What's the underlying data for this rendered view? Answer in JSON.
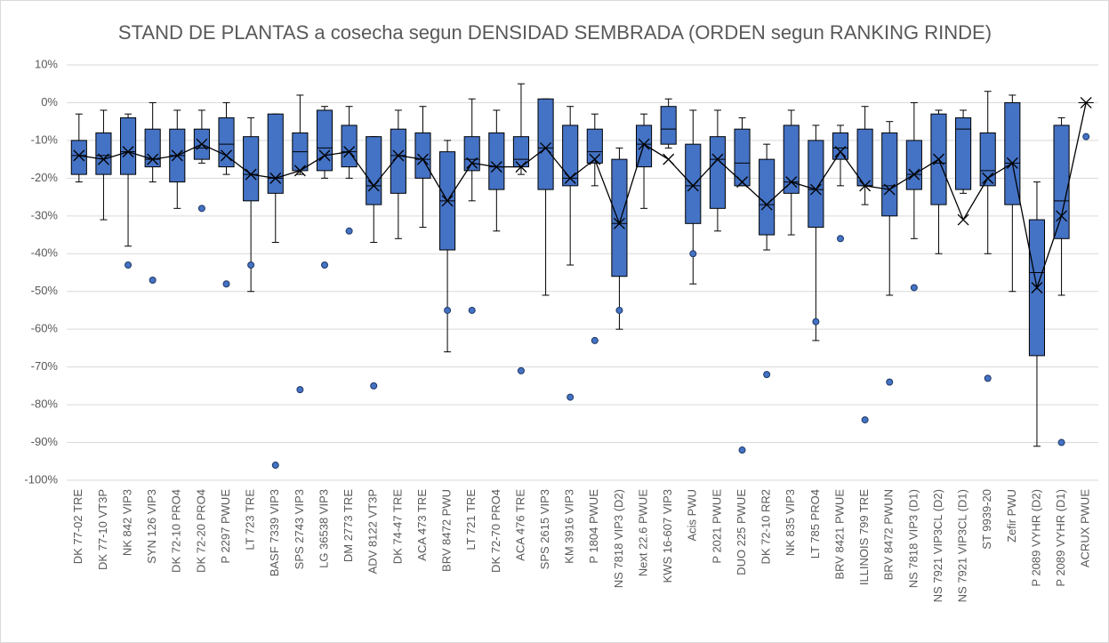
{
  "chart_data": {
    "type": "box",
    "title": "STAND DE PLANTAS a cosecha segun DENSIDAD SEMBRADA (ORDEN segun RANKING RINDE)",
    "categories": [
      "DK 77-02 TRE",
      "DK 77-10 VT3P",
      "NK 842 VIP3",
      "SYN 126 VIP3",
      "DK 72-10 PRO4",
      "DK 72-20 PRO4",
      "P 2297 PWUE",
      "LT 723 TRE",
      "BASF 7339 VIP3",
      "SPS 2743 VIP3",
      "LG 36538 VIP3",
      "DM 2773 TRE",
      "ADV 8122 VT3P",
      "DK 74-47 TRE",
      "ACA 473 TRE",
      "BRV 8472 PWU",
      "LT 721 TRE",
      "DK 72-70 PRO4",
      "ACA 476 TRE",
      "SPS 2615 VIP3",
      "KM 3916 VIP3",
      "P 1804 PWUE",
      "NS 7818 VIP3 (D2)",
      "Next 22.6 PWUE",
      "KWS 16-607 VIP3",
      "Acis PWU",
      "P 2021 PWUE",
      "DUO 225 PWUE",
      "DK 72-10 RR2",
      "NK 835 VIP3",
      "LT 785 PRO4",
      "BRV 8421 PWUE",
      "ILLINOIS 799 TRE",
      "BRV 8472 PWUN",
      "NS 7818 VIP3 (D1)",
      "NS 7921 VIP3CL (D2)",
      "NS 7921 VIP3CL (D1)",
      "ST 9939-20",
      "Zefir PWU",
      "P 2089 VYHR (D2)",
      "P 2089 VYHR (D1)",
      "ACRUX PWUE"
    ],
    "boxes": [
      {
        "low": -21,
        "q1": -19,
        "median": -14,
        "q3": -10,
        "high": -3,
        "mean": -14,
        "outliers": []
      },
      {
        "low": -31,
        "q1": -19,
        "median": -14,
        "q3": -8,
        "high": -2,
        "mean": -15,
        "outliers": []
      },
      {
        "low": -38,
        "q1": -19,
        "median": -13,
        "q3": -4,
        "high": -3,
        "mean": -13,
        "outliers": [
          -43
        ]
      },
      {
        "low": -21,
        "q1": -17,
        "median": -15,
        "q3": -7,
        "high": 0,
        "mean": -15,
        "outliers": [
          -47
        ]
      },
      {
        "low": -28,
        "q1": -21,
        "median": -14,
        "q3": -7,
        "high": -2,
        "mean": -14,
        "outliers": []
      },
      {
        "low": -16,
        "q1": -15,
        "median": -12,
        "q3": -7,
        "high": -2,
        "mean": -11,
        "outliers": [
          -28
        ]
      },
      {
        "low": -19,
        "q1": -17,
        "median": -11,
        "q3": -4,
        "high": 0,
        "mean": -14,
        "outliers": [
          -48
        ]
      },
      {
        "low": -50,
        "q1": -26,
        "median": -19,
        "q3": -9,
        "high": -4,
        "mean": -19,
        "outliers": [
          -43
        ]
      },
      {
        "low": -37,
        "q1": -24,
        "median": -20,
        "q3": -3,
        "high": -3,
        "mean": -20,
        "outliers": [
          -96
        ]
      },
      {
        "low": -19,
        "q1": -18,
        "median": -13,
        "q3": -8,
        "high": 2,
        "mean": -18,
        "outliers": [
          -76
        ]
      },
      {
        "low": -20,
        "q1": -18,
        "median": -12,
        "q3": -2,
        "high": -1,
        "mean": -14,
        "outliers": [
          -43
        ]
      },
      {
        "low": -20,
        "q1": -17,
        "median": -13,
        "q3": -6,
        "high": -1,
        "mean": -13,
        "outliers": [
          -34
        ]
      },
      {
        "low": -37,
        "q1": -27,
        "median": -22,
        "q3": -9,
        "high": -9,
        "mean": -22,
        "outliers": [
          -75
        ]
      },
      {
        "low": -36,
        "q1": -24,
        "median": -14,
        "q3": -7,
        "high": -2,
        "mean": -14,
        "outliers": []
      },
      {
        "low": -33,
        "q1": -20,
        "median": -15,
        "q3": -8,
        "high": -1,
        "mean": -15,
        "outliers": []
      },
      {
        "low": -66,
        "q1": -39,
        "median": -26,
        "q3": -13,
        "high": -10,
        "mean": -26,
        "outliers": [
          -55
        ]
      },
      {
        "low": -26,
        "q1": -18,
        "median": -15,
        "q3": -9,
        "high": 1,
        "mean": -16,
        "outliers": [
          -55
        ]
      },
      {
        "low": -34,
        "q1": -23,
        "median": -17,
        "q3": -8,
        "high": -2,
        "mean": -17,
        "outliers": []
      },
      {
        "low": -19,
        "q1": -17,
        "median": -15,
        "q3": -9,
        "high": 5,
        "mean": -17,
        "outliers": [
          -71
        ]
      },
      {
        "low": -51,
        "q1": -23,
        "median": -12,
        "q3": 1,
        "high": 1,
        "mean": -12,
        "outliers": []
      },
      {
        "low": -43,
        "q1": -22,
        "median": -20,
        "q3": -6,
        "high": -1,
        "mean": -20,
        "outliers": [
          -78
        ]
      },
      {
        "low": -22,
        "q1": -16,
        "median": -13,
        "q3": -7,
        "high": -3,
        "mean": -15,
        "outliers": [
          -63
        ]
      },
      {
        "low": -60,
        "q1": -46,
        "median": -32,
        "q3": -15,
        "high": -12,
        "mean": -32,
        "outliers": [
          -55
        ]
      },
      {
        "low": -28,
        "q1": -17,
        "median": -11,
        "q3": -6,
        "high": -3,
        "mean": -11,
        "outliers": []
      },
      {
        "low": -12,
        "q1": -11,
        "median": -7,
        "q3": -1,
        "high": 1,
        "mean": -15,
        "outliers": []
      },
      {
        "low": -48,
        "q1": -32,
        "median": -22,
        "q3": -11,
        "high": -2,
        "mean": -22,
        "outliers": [
          -40
        ]
      },
      {
        "low": -34,
        "q1": -28,
        "median": -15,
        "q3": -9,
        "high": -2,
        "mean": -15,
        "outliers": []
      },
      {
        "low": -22,
        "q1": -22,
        "median": -16,
        "q3": -7,
        "high": -4,
        "mean": -21,
        "outliers": [
          -92
        ]
      },
      {
        "low": -39,
        "q1": -35,
        "median": -27,
        "q3": -15,
        "high": -11,
        "mean": -27,
        "outliers": [
          -72
        ]
      },
      {
        "low": -35,
        "q1": -24,
        "median": -21,
        "q3": -6,
        "high": -2,
        "mean": -21,
        "outliers": []
      },
      {
        "low": -63,
        "q1": -33,
        "median": -23,
        "q3": -10,
        "high": -6,
        "mean": -23,
        "outliers": [
          -58
        ]
      },
      {
        "low": -22,
        "q1": -15,
        "median": -12,
        "q3": -8,
        "high": -6,
        "mean": -13,
        "outliers": [
          -36
        ]
      },
      {
        "low": -27,
        "q1": -22,
        "median": -22,
        "q3": -7,
        "high": -1,
        "mean": -22,
        "outliers": [
          -84
        ]
      },
      {
        "low": -51,
        "q1": -30,
        "median": -22,
        "q3": -8,
        "high": -5,
        "mean": -23,
        "outliers": [
          -74
        ]
      },
      {
        "low": -36,
        "q1": -23,
        "median": -19,
        "q3": -10,
        "high": 0,
        "mean": -19,
        "outliers": [
          -49
        ]
      },
      {
        "low": -40,
        "q1": -27,
        "median": -16,
        "q3": -3,
        "high": -2,
        "mean": -15,
        "outliers": []
      },
      {
        "low": -24,
        "q1": -23,
        "median": -7,
        "q3": -4,
        "high": -2,
        "mean": -31,
        "outliers": []
      },
      {
        "low": -40,
        "q1": -22,
        "median": -18,
        "q3": -8,
        "high": 3,
        "mean": -20,
        "outliers": [
          -73
        ]
      },
      {
        "low": -50,
        "q1": -27,
        "median": -16,
        "q3": 0,
        "high": 2,
        "mean": -16,
        "outliers": []
      },
      {
        "low": -91,
        "q1": -67,
        "median": -45,
        "q3": -31,
        "high": -21,
        "mean": -49,
        "outliers": []
      },
      {
        "low": -51,
        "q1": -36,
        "median": -26,
        "q3": -6,
        "high": -4,
        "mean": -30,
        "outliers": [
          -90
        ]
      },
      {
        "low": 0,
        "q1": 0,
        "median": 0,
        "q3": 0,
        "high": 0,
        "mean": 0,
        "outliers": [
          -9
        ]
      }
    ],
    "color": "#4472c4",
    "ylim": [
      -100,
      10
    ],
    "yticks": [
      {
        "value": 10,
        "label": "10%"
      },
      {
        "value": 0,
        "label": "0%"
      },
      {
        "value": -10,
        "label": "-10%"
      },
      {
        "value": -20,
        "label": "-20%"
      },
      {
        "value": -30,
        "label": "-30%"
      },
      {
        "value": -40,
        "label": "-40%"
      },
      {
        "value": -50,
        "label": "-50%"
      },
      {
        "value": -60,
        "label": "-60%"
      },
      {
        "value": -70,
        "label": "-70%"
      },
      {
        "value": -80,
        "label": "-80%"
      },
      {
        "value": -90,
        "label": "-90%"
      },
      {
        "value": -100,
        "label": "-100%"
      }
    ],
    "grid": true
  }
}
